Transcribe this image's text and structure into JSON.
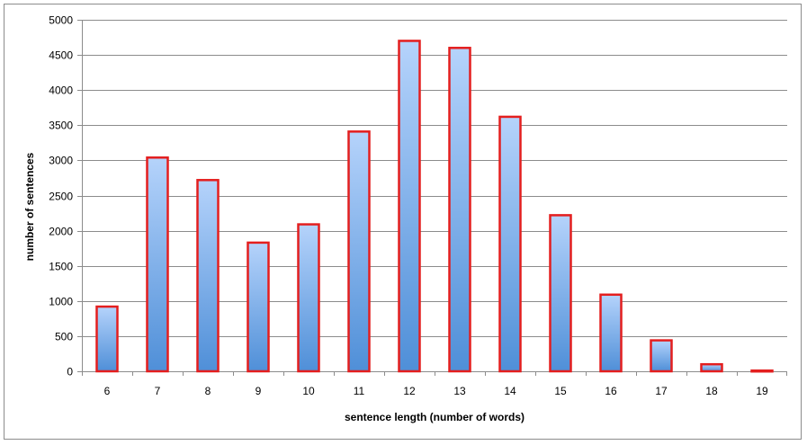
{
  "chart_data": {
    "type": "bar",
    "title": "",
    "xlabel": "sentence length (number of words)",
    "ylabel": "number of sentences",
    "categories": [
      "6",
      "7",
      "8",
      "9",
      "10",
      "11",
      "12",
      "13",
      "14",
      "15",
      "16",
      "17",
      "18",
      "19"
    ],
    "values": [
      920,
      3040,
      2720,
      1830,
      2090,
      3410,
      4700,
      4600,
      3620,
      2220,
      1090,
      440,
      100,
      10
    ],
    "ylim": [
      0,
      5000
    ],
    "yticks": [
      0,
      500,
      1000,
      1500,
      2000,
      2500,
      3000,
      3500,
      4000,
      4500,
      5000
    ],
    "grid": true,
    "legend": "none",
    "colors": {
      "bar_top": "#b5d3fb",
      "bar_bottom": "#4f8fd8",
      "bar_border": "#e41e1e",
      "gridline": "#8c8c8c"
    }
  }
}
